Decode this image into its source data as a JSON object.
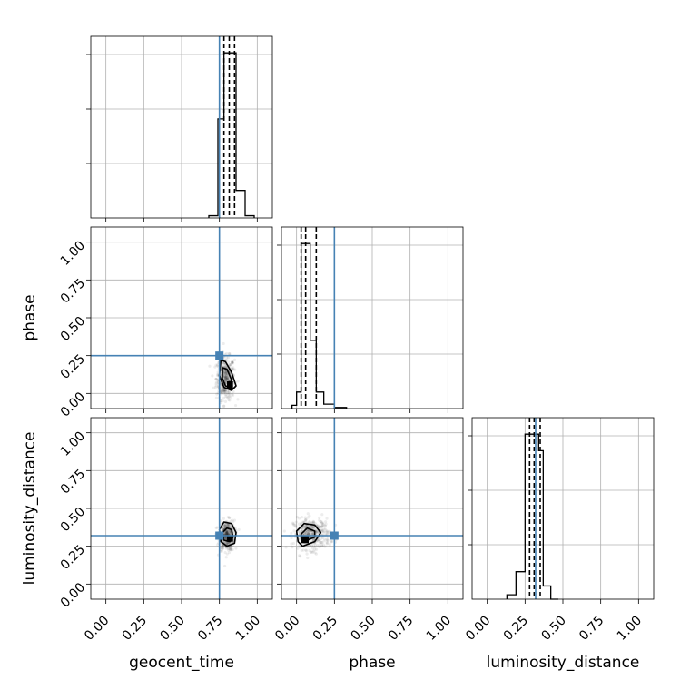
{
  "chart_data": {
    "type": "corner",
    "parameters": [
      "geocent_time",
      "phase",
      "luminosity_distance"
    ],
    "axis_range": [
      -0.1,
      1.1
    ],
    "tick_values": [
      0.0,
      0.25,
      0.5,
      0.75,
      1.0
    ],
    "tick_labels": [
      "0.00",
      "0.25",
      "0.50",
      "0.75",
      "1.00"
    ],
    "grid": true,
    "colors": {
      "truth": "#4682b4",
      "hist": "#000000",
      "grid": "#b0b0b0"
    },
    "truths": {
      "geocent_time": 0.75,
      "phase": 0.25,
      "luminosity_distance": 0.32
    },
    "histograms": [
      {
        "parameter": "geocent_time",
        "bin_edges": [
          0.68,
          0.74,
          0.78,
          0.82,
          0.86,
          0.92,
          0.98
        ],
        "counts": [
          2,
          90,
          150,
          150,
          25,
          2
        ],
        "quantiles": [
          0.78,
          0.815,
          0.85
        ]
      },
      {
        "parameter": "phase",
        "bin_edges": [
          -0.03,
          0.0,
          0.03,
          0.06,
          0.09,
          0.13,
          0.18,
          0.25,
          0.33
        ],
        "counts": [
          3,
          15,
          150,
          150,
          62,
          15,
          4,
          1
        ],
        "quantiles": [
          0.03,
          0.06,
          0.13
        ]
      },
      {
        "parameter": "luminosity_distance",
        "bin_edges": [
          0.13,
          0.19,
          0.25,
          0.29,
          0.34,
          0.37,
          0.42,
          0.47
        ],
        "counts": [
          4,
          25,
          150,
          150,
          135,
          12,
          0
        ],
        "quantiles": [
          0.28,
          0.31,
          0.35
        ]
      }
    ],
    "pairs": [
      {
        "x": "geocent_time",
        "y": "phase",
        "scatter_center": [
          0.79,
          0.1
        ],
        "scatter_spread": [
          0.03,
          0.07
        ],
        "contours": [
          [
            [
              0.76,
              0.22
            ],
            [
              0.79,
              0.21
            ],
            [
              0.83,
              0.14
            ],
            [
              0.86,
              0.05
            ],
            [
              0.83,
              0.02
            ],
            [
              0.78,
              0.04
            ],
            [
              0.75,
              0.12
            ]
          ],
          [
            [
              0.77,
              0.17
            ],
            [
              0.8,
              0.16
            ],
            [
              0.83,
              0.09
            ],
            [
              0.82,
              0.04
            ],
            [
              0.79,
              0.05
            ],
            [
              0.77,
              0.1
            ]
          ]
        ],
        "core_box": [
          0.8,
          0.03,
          0.84,
          0.08
        ]
      },
      {
        "x": "geocent_time",
        "y": "luminosity_distance",
        "scatter_center": [
          0.8,
          0.32
        ],
        "scatter_spread": [
          0.025,
          0.05
        ],
        "contours": [
          [
            [
              0.75,
              0.36
            ],
            [
              0.78,
              0.41
            ],
            [
              0.83,
              0.4
            ],
            [
              0.86,
              0.34
            ],
            [
              0.85,
              0.27
            ],
            [
              0.8,
              0.25
            ],
            [
              0.76,
              0.28
            ]
          ],
          [
            [
              0.77,
              0.34
            ],
            [
              0.8,
              0.37
            ],
            [
              0.83,
              0.36
            ],
            [
              0.84,
              0.31
            ],
            [
              0.82,
              0.28
            ],
            [
              0.78,
              0.29
            ]
          ]
        ],
        "core_box": [
          0.8,
          0.28,
          0.84,
          0.32
        ]
      },
      {
        "x": "phase",
        "y": "luminosity_distance",
        "scatter_center": [
          0.1,
          0.33
        ],
        "scatter_spread": [
          0.06,
          0.05
        ],
        "contours": [
          [
            [
              0.0,
              0.35
            ],
            [
              0.05,
              0.4
            ],
            [
              0.12,
              0.39
            ],
            [
              0.16,
              0.34
            ],
            [
              0.12,
              0.28
            ],
            [
              0.04,
              0.25
            ],
            [
              0.01,
              0.28
            ]
          ],
          [
            [
              0.03,
              0.33
            ],
            [
              0.07,
              0.37
            ],
            [
              0.12,
              0.35
            ],
            [
              0.12,
              0.31
            ],
            [
              0.07,
              0.29
            ],
            [
              0.03,
              0.3
            ]
          ]
        ],
        "core_box": [
          0.03,
          0.27,
          0.08,
          0.32
        ]
      }
    ]
  }
}
